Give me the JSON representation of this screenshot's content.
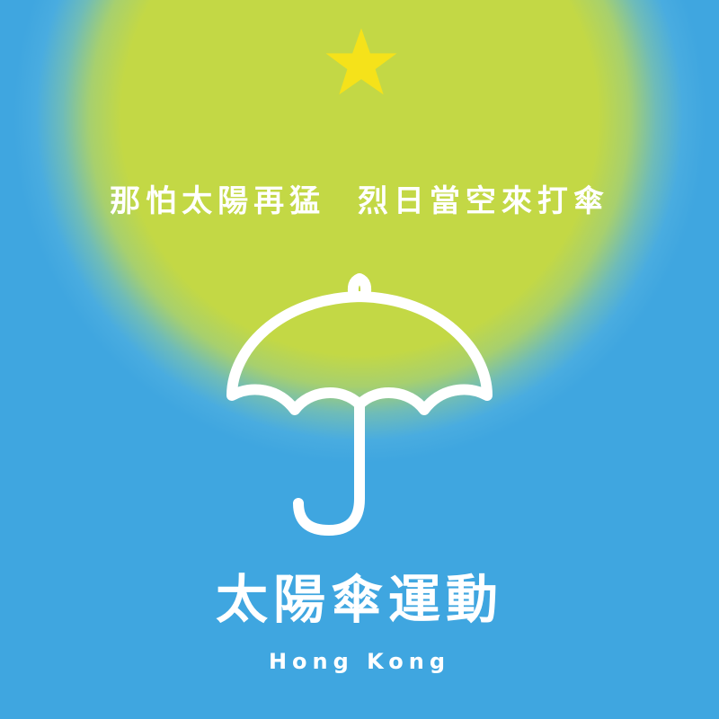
{
  "poster": {
    "slogan": "那怕太陽再猛  烈日當空來打傘",
    "title": "太陽傘運動",
    "subtitle": "Hong Kong",
    "icons": {
      "star": "star-icon",
      "umbrella": "umbrella-icon"
    },
    "colors": {
      "background_blue": "#3fa6e0",
      "sun_green": "#c3d845",
      "star_yellow": "#f5e21a",
      "text_white": "#ffffff"
    }
  }
}
